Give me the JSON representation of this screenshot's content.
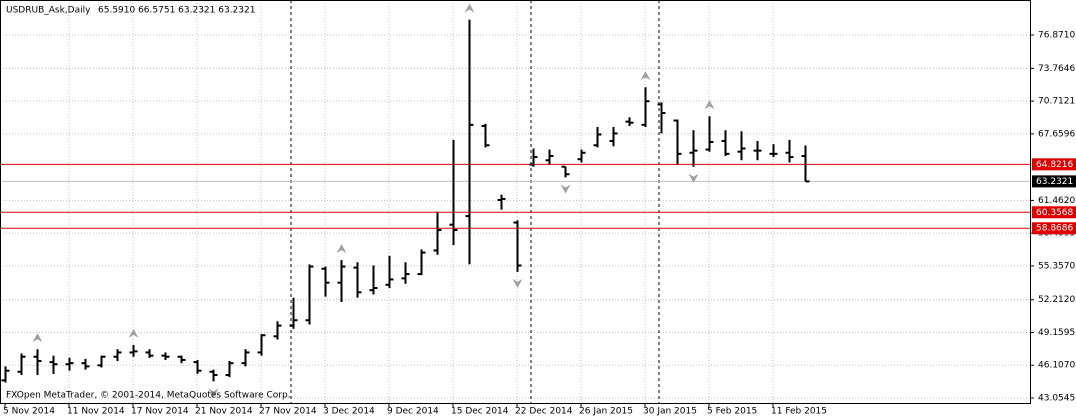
{
  "chart_data": {
    "type": "ohlc",
    "symbol": "USDRUB_Ask,Daily",
    "ohlc_text": "65.5910 66.5751 63.2321 63.2321",
    "copyright": "FXOpen MetaTrader, © 2001-2014, MetaQuotes Software Corp.",
    "color": "#000000",
    "grid": true,
    "categories": [
      "5 Nov 2014",
      null,
      null,
      null,
      "11 Nov 2014",
      null,
      null,
      null,
      "17 Nov 2014",
      null,
      null,
      null,
      "21 Nov 2014",
      null,
      null,
      null,
      "27 Nov 2014",
      null,
      null,
      null,
      "3 Dec 2014",
      null,
      null,
      null,
      "9 Dec 2014",
      null,
      null,
      null,
      "15 Dec 2014",
      null,
      null,
      null,
      "22 Dec 2014",
      null,
      null,
      null,
      "26 Jan 2015",
      null,
      null,
      null,
      "30 Jan 2015",
      null,
      null,
      null,
      "5 Feb 2015",
      null,
      null,
      null,
      "11 Feb 2015",
      null,
      null
    ],
    "open": [
      44.7,
      45.5,
      46.9,
      46.4,
      46.2,
      46.3,
      46.1,
      46.9,
      47.3,
      47.3,
      47.0,
      46.9,
      46.4,
      45.5,
      45.2,
      46.3,
      47.3,
      48.8,
      49.8,
      50.3,
      55.1,
      53.8,
      55.2,
      53.1,
      53.6,
      54.2,
      54.6,
      56.8,
      59.2,
      60.0,
      68.4,
      61.5,
      59.4,
      64.8,
      65.2,
      64.6,
      65.3,
      66.6,
      67.0,
      68.8,
      68.5,
      70.4,
      68.9,
      65.9,
      66.2,
      67.0,
      66.0,
      66.1,
      65.8,
      65.9,
      65.591
    ],
    "high": [
      46.0,
      47.2,
      47.6,
      47.0,
      46.8,
      46.7,
      47.0,
      47.6,
      48.0,
      47.6,
      47.3,
      47.0,
      46.6,
      45.7,
      46.5,
      47.6,
      49.0,
      50.2,
      52.4,
      55.5,
      55.3,
      55.9,
      55.7,
      55.4,
      56.3,
      55.7,
      56.9,
      60.4,
      67.1,
      78.3,
      68.6,
      62.0,
      59.6,
      66.3,
      66.2,
      64.6,
      66.2,
      68.3,
      68.3,
      69.2,
      72.0,
      70.6,
      69.0,
      68.0,
      69.3,
      68.0,
      67.9,
      67.0,
      66.7,
      67.1,
      66.5751
    ],
    "low": [
      44.5,
      45.2,
      45.2,
      45.3,
      45.6,
      45.7,
      45.9,
      46.5,
      46.9,
      46.8,
      46.6,
      46.3,
      45.3,
      44.6,
      45.0,
      46.0,
      47.0,
      48.5,
      49.5,
      49.9,
      52.5,
      52.0,
      52.4,
      52.7,
      53.3,
      53.7,
      54.5,
      56.4,
      57.3,
      55.5,
      66.4,
      60.6,
      54.8,
      64.6,
      64.8,
      63.6,
      65.0,
      66.4,
      66.5,
      68.4,
      68.3,
      67.7,
      64.8,
      64.6,
      66.0,
      65.6,
      65.2,
      65.2,
      65.5,
      65.0,
      63.2321
    ],
    "close": [
      45.6,
      46.9,
      46.5,
      46.2,
      46.3,
      46.0,
      46.9,
      47.3,
      47.4,
      47.0,
      46.9,
      46.6,
      45.6,
      45.2,
      46.3,
      47.3,
      48.9,
      49.8,
      50.3,
      55.3,
      53.8,
      55.3,
      52.9,
      53.3,
      54.1,
      54.6,
      56.6,
      58.7,
      58.7,
      68.5,
      66.6,
      61.6,
      55.4,
      65.5,
      65.6,
      63.9,
      65.9,
      67.6,
      67.7,
      68.7,
      70.7,
      69.6,
      65.8,
      66.1,
      66.9,
      65.8,
      66.3,
      66.1,
      65.8,
      65.5,
      63.2321
    ],
    "fractals_up": [
      2,
      8,
      21,
      29,
      40,
      44
    ],
    "fractals_down": [
      13,
      32,
      35,
      43
    ],
    "ylim": [
      42.59,
      80.13
    ],
    "yticks": [
      {
        "value": 76.871,
        "label": "76.8710"
      },
      {
        "value": 73.7646,
        "label": "73.7646"
      },
      {
        "value": 70.7121,
        "label": "70.7121"
      },
      {
        "value": 67.6596,
        "label": "67.6596"
      },
      {
        "value": 61.462,
        "label": "61.4620"
      },
      {
        "value": 58.4095,
        "label": "58.4095"
      },
      {
        "value": 55.357,
        "label": "55.3570"
      },
      {
        "value": 52.212,
        "label": "52.2120"
      },
      {
        "value": 49.1595,
        "label": "49.1595"
      },
      {
        "value": 46.107,
        "label": "46.1070"
      },
      {
        "value": 43.0545,
        "label": "43.0545"
      }
    ],
    "levels": [
      {
        "value": 64.8216,
        "label": "64.8216",
        "color": "#e00000"
      },
      {
        "value": 60.3568,
        "label": "60.3568",
        "color": "#e00000"
      },
      {
        "value": 58.8686,
        "label": "58.8686",
        "color": "#e00000"
      },
      {
        "value": 63.2321,
        "label": "63.2321",
        "color": "#000000"
      }
    ]
  }
}
